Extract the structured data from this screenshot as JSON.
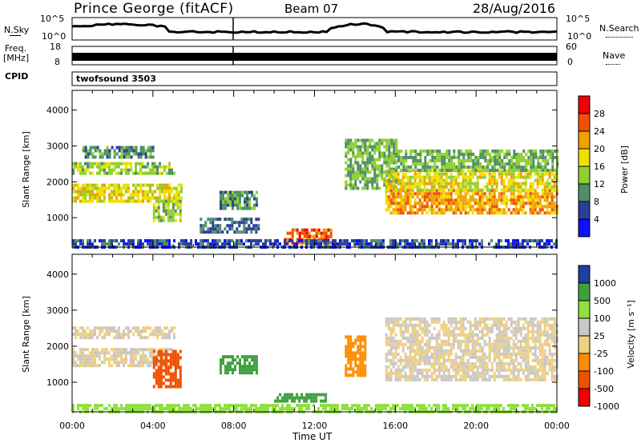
{
  "header": {
    "station": "Prince George (fitACF)",
    "beam": "Beam 07",
    "date": "28/Aug/2016"
  },
  "panels": {
    "noise": {
      "left_label": "N.Sky",
      "right_label": "N.Search",
      "yticks_left": [
        "10^5",
        "10^0"
      ],
      "yticks_right": [
        "10^5",
        "10^0"
      ]
    },
    "freq": {
      "left_label_line1": "Freq.",
      "left_label_line2": "[MHz]",
      "right_label": "Nave",
      "yticks_left": [
        "18",
        "8"
      ],
      "yticks_right": [
        "60",
        "0"
      ]
    },
    "cpid": {
      "left_label": "CPID",
      "program": "twofsound 3503"
    }
  },
  "colors": {
    "power_scale": [
      "#1010ff",
      "#2a3f9a",
      "#4f8f68",
      "#8fd030",
      "#f0e000",
      "#f0a000",
      "#f05000",
      "#f00000"
    ],
    "velocity_scale": [
      "#f00000",
      "#f05000",
      "#ff8c00",
      "#f0d080",
      "#c8c8c8",
      "#90e040",
      "#40a040",
      "#2040a0"
    ],
    "noise_line": "#000000"
  },
  "chart_data": [
    {
      "type": "heatmap",
      "panel": "power",
      "xlabel": "",
      "ylabel": "Slant Range [km]",
      "x_range_hours": [
        0,
        24
      ],
      "ylim": [
        180,
        4550
      ],
      "yticks": [
        1000,
        2000,
        3000,
        4000
      ],
      "xtick_labels": [
        "00:00",
        "04:00",
        "08:00",
        "12:00",
        "16:00",
        "20:00",
        "00:00"
      ],
      "colorbar": {
        "label": "Power [dB]",
        "ticks": [
          4,
          8,
          12,
          16,
          20,
          24,
          28
        ],
        "range": [
          0,
          32
        ]
      },
      "echo_regions": [
        {
          "t0": 0.0,
          "t1": 5.4,
          "r0": 1450,
          "r1": 1950,
          "value": 18
        },
        {
          "t0": 0.0,
          "t1": 5.0,
          "r0": 2200,
          "r1": 2550,
          "value": 14
        },
        {
          "t0": 0.5,
          "t1": 4.0,
          "r0": 2650,
          "r1": 3000,
          "value": 10
        },
        {
          "t0": 4.0,
          "t1": 5.4,
          "r0": 900,
          "r1": 1500,
          "value": 14
        },
        {
          "t0": 6.2,
          "t1": 9.2,
          "r0": 600,
          "r1": 1000,
          "value": 8
        },
        {
          "t0": 7.3,
          "t1": 9.1,
          "r0": 1250,
          "r1": 1750,
          "value": 10
        },
        {
          "t0": 10.5,
          "t1": 12.8,
          "r0": 280,
          "r1": 700,
          "value": 26
        },
        {
          "t0": 13.5,
          "t1": 16.0,
          "r0": 1800,
          "r1": 3200,
          "value": 12
        },
        {
          "t0": 15.5,
          "t1": 24.0,
          "r0": 1100,
          "r1": 1800,
          "value": 22
        },
        {
          "t0": 15.5,
          "t1": 24.0,
          "r0": 1800,
          "r1": 2350,
          "value": 18
        },
        {
          "t0": 16.0,
          "t1": 24.0,
          "r0": 2350,
          "r1": 2900,
          "value": 12
        },
        {
          "t0": 0.0,
          "t1": 24.0,
          "r0": 180,
          "r1": 400,
          "value": 6
        }
      ]
    },
    {
      "type": "heatmap",
      "panel": "velocity",
      "xlabel": "Time UT",
      "ylabel": "Slant Range [km]",
      "x_range_hours": [
        0,
        24
      ],
      "ylim": [
        180,
        4550
      ],
      "yticks": [
        1000,
        2000,
        3000,
        4000
      ],
      "xtick_labels": [
        "00:00",
        "04:00",
        "08:00",
        "12:00",
        "16:00",
        "20:00",
        "00:00"
      ],
      "colorbar": {
        "label": "Velocity [m s⁻¹]",
        "ticks": [
          "1000",
          "500",
          "100",
          "25",
          "-25",
          "-100",
          "-500",
          "-1000"
        ]
      },
      "echo_regions": [
        {
          "t0": 0.0,
          "t1": 5.0,
          "r0": 1450,
          "r1": 1950,
          "value": 0
        },
        {
          "t0": 0.0,
          "t1": 5.0,
          "r0": 2200,
          "r1": 2550,
          "value": 0
        },
        {
          "t0": 4.0,
          "t1": 5.4,
          "r0": 900,
          "r1": 1900,
          "value": -300
        },
        {
          "t0": 7.3,
          "t1": 9.1,
          "r0": 1250,
          "r1": 1750,
          "value": 120
        },
        {
          "t0": 10.0,
          "t1": 12.5,
          "r0": 450,
          "r1": 700,
          "value": 150
        },
        {
          "t0": 13.5,
          "t1": 14.5,
          "r0": 1200,
          "r1": 2300,
          "value": -80
        },
        {
          "t0": 15.5,
          "t1": 24.0,
          "r0": 1100,
          "r1": 2800,
          "value": 0
        },
        {
          "t0": 0.0,
          "t1": 24.0,
          "r0": 180,
          "r1": 400,
          "value": 60
        }
      ]
    }
  ]
}
